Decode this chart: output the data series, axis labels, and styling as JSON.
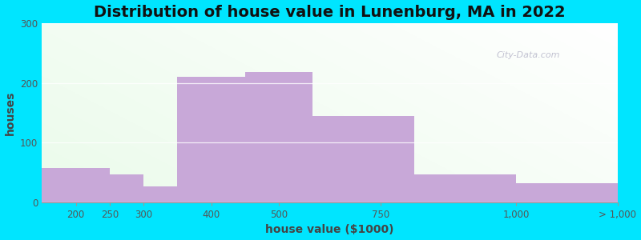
{
  "title": "Distribution of house value in Lunenburg, MA in 2022",
  "xlabel": "house value ($1000)",
  "ylabel": "houses",
  "bar_heights": [
    57,
    47,
    27,
    210,
    218,
    145,
    47,
    32
  ],
  "bar_left_edges": [
    0,
    1,
    1.5,
    2,
    3,
    4,
    5.5,
    7
  ],
  "bar_widths": [
    1,
    0.5,
    0.5,
    1,
    1,
    1.5,
    1.5,
    1.5
  ],
  "xtick_positions": [
    0.5,
    1.0,
    1.5,
    2.5,
    3.5,
    5.0,
    7.0,
    8.5
  ],
  "bar_labels": [
    "200",
    "250",
    "300",
    "400",
    "500",
    "750",
    "1,000",
    "> 1,000"
  ],
  "bar_color": "#c8a8d8",
  "ylim": [
    0,
    300
  ],
  "yticks": [
    0,
    100,
    200,
    300
  ],
  "xlim": [
    0,
    8.5
  ],
  "bg_outer": "#00e5ff",
  "bg_plot_left": "#d8eec8",
  "bg_plot_right": "#f8f8f0",
  "title_fontsize": 14,
  "axis_label_fontsize": 10,
  "tick_fontsize": 8.5,
  "watermark": "City-Data.com"
}
